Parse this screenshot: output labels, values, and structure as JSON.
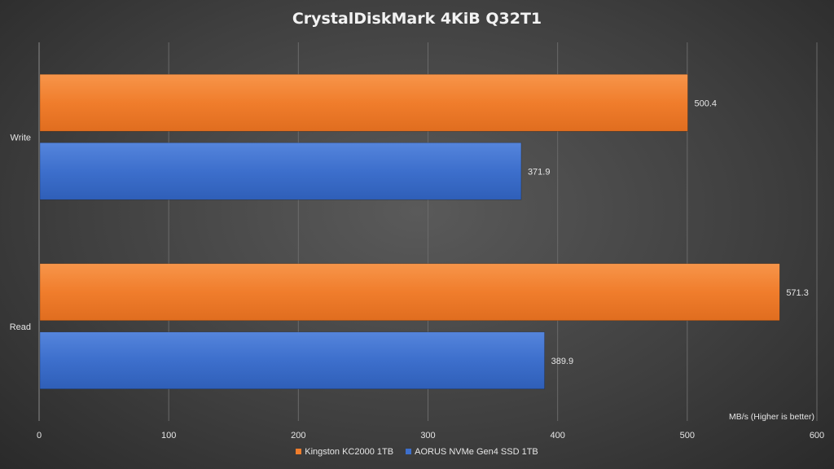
{
  "chart_data": {
    "type": "bar",
    "orientation": "horizontal",
    "title": "CrystalDiskMark  4KiB  Q32T1",
    "categories": [
      "Write",
      "Read"
    ],
    "series": [
      {
        "name": "Kingston KC2000 1TB",
        "values": [
          500.4,
          571.3
        ],
        "color": "#f07d2c"
      },
      {
        "name": "AORUS NVMe Gen4 SSD 1TB",
        "values": [
          371.9,
          389.9
        ],
        "color": "#3d6fcc"
      }
    ],
    "xlim": [
      0,
      600
    ],
    "xticks": [
      0,
      100,
      200,
      300,
      400,
      500,
      600
    ],
    "xlabel": "MB/s (Higher is better)",
    "grid": true,
    "legend": "bottom"
  }
}
